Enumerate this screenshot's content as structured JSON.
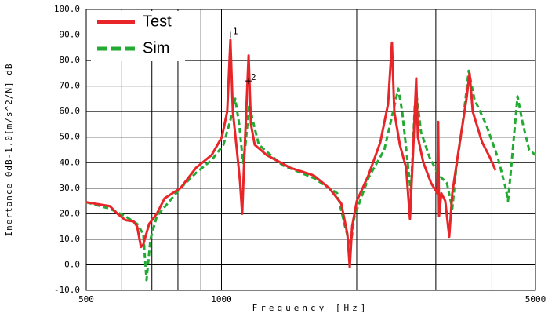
{
  "chart_data": {
    "type": "line",
    "x_label": "Frequency [Hz]",
    "y_label": "Inertance 0dB-1.0[m/s^2/N] dB",
    "xscale": "log",
    "xlim": [
      500,
      5000
    ],
    "xticks": [
      500,
      1000,
      5000
    ],
    "xgrid": [
      600,
      700,
      800,
      900,
      2000,
      3000,
      4000
    ],
    "ylim": [
      -10,
      100
    ],
    "yticks": [
      {
        "value": -10,
        "label": "-10.0"
      },
      {
        "value": 0,
        "label": "0.0"
      },
      {
        "value": 10,
        "label": "10.0"
      },
      {
        "value": 20,
        "label": "20.0"
      },
      {
        "value": 30,
        "label": "30.0"
      },
      {
        "value": 40,
        "label": "40.0"
      },
      {
        "value": 50,
        "label": "50.0"
      },
      {
        "value": 60,
        "label": "60.0"
      },
      {
        "value": 70,
        "label": "70.0"
      },
      {
        "value": 80,
        "label": "80.0"
      },
      {
        "value": 90,
        "label": "90.0"
      },
      {
        "value": 100,
        "label": "100.0"
      }
    ],
    "grid": true,
    "legend": "top-left",
    "annotations": [
      {
        "text": "1",
        "x": 1047,
        "y": 90
      },
      {
        "text": "2",
        "x": 1149,
        "y": 72
      }
    ],
    "series": [
      {
        "name": "Test",
        "color": "#e8262a",
        "dash": false,
        "x": [
          500,
          564,
          587,
          611,
          637,
          649,
          662,
          670,
          690,
          718,
          747,
          810,
          878,
          951,
          1002,
          1030,
          1047,
          1060,
          1082,
          1099,
          1112,
          1126,
          1149,
          1163,
          1186,
          1260,
          1422,
          1604,
          1738,
          1847,
          1907,
          1930,
          1953,
          2001,
          2124,
          2257,
          2349,
          2396,
          2425,
          2495,
          2576,
          2628,
          2671,
          2714,
          2736,
          2814,
          2929,
          3025,
          3037,
          3050,
          3086,
          3149,
          3213,
          3265,
          3372,
          3510,
          3567,
          3625,
          3803,
          3960,
          4073
        ],
        "values": [
          24.5,
          23,
          20,
          17.5,
          17,
          15,
          7,
          8,
          16,
          20,
          26,
          30,
          38,
          43,
          50,
          60,
          88,
          60,
          45,
          33,
          20,
          45,
          82,
          55,
          47,
          43,
          38,
          35,
          30,
          24,
          12,
          -1,
          15,
          25,
          35,
          48,
          63,
          87,
          60,
          47,
          38,
          18,
          45,
          73,
          50,
          40,
          32,
          28,
          56,
          19,
          28,
          25,
          11,
          28,
          45,
          65,
          75,
          60,
          48,
          42,
          37
        ]
      },
      {
        "name": "Sim",
        "color": "#22aa33",
        "dash": true,
        "x": [
          500,
          564,
          611,
          649,
          670,
          681,
          695,
          718,
          810,
          878,
          951,
          1010,
          1052,
          1073,
          1095,
          1117,
          1131,
          1153,
          1172,
          1211,
          1366,
          1604,
          1810,
          1884,
          1937,
          1977,
          2124,
          2303,
          2396,
          2475,
          2525,
          2597,
          2640,
          2693,
          2725,
          2781,
          2906,
          3050,
          3175,
          3265,
          3332,
          3441,
          3552,
          3655,
          3881,
          4123,
          4292,
          4344,
          4415,
          4560,
          4689,
          4842,
          5000
        ],
        "values": [
          24.5,
          22,
          19,
          16,
          12,
          -6,
          10,
          19,
          30,
          36,
          41,
          47,
          58,
          65,
          55,
          40,
          47,
          63,
          57,
          47,
          39,
          34,
          28,
          15,
          7,
          19,
          34,
          45,
          58,
          69,
          60,
          40,
          28,
          62,
          65,
          52,
          42,
          35,
          32,
          22,
          38,
          55,
          76,
          65,
          55,
          42,
          30,
          25,
          38,
          66,
          55,
          45,
          43
        ]
      }
    ]
  }
}
